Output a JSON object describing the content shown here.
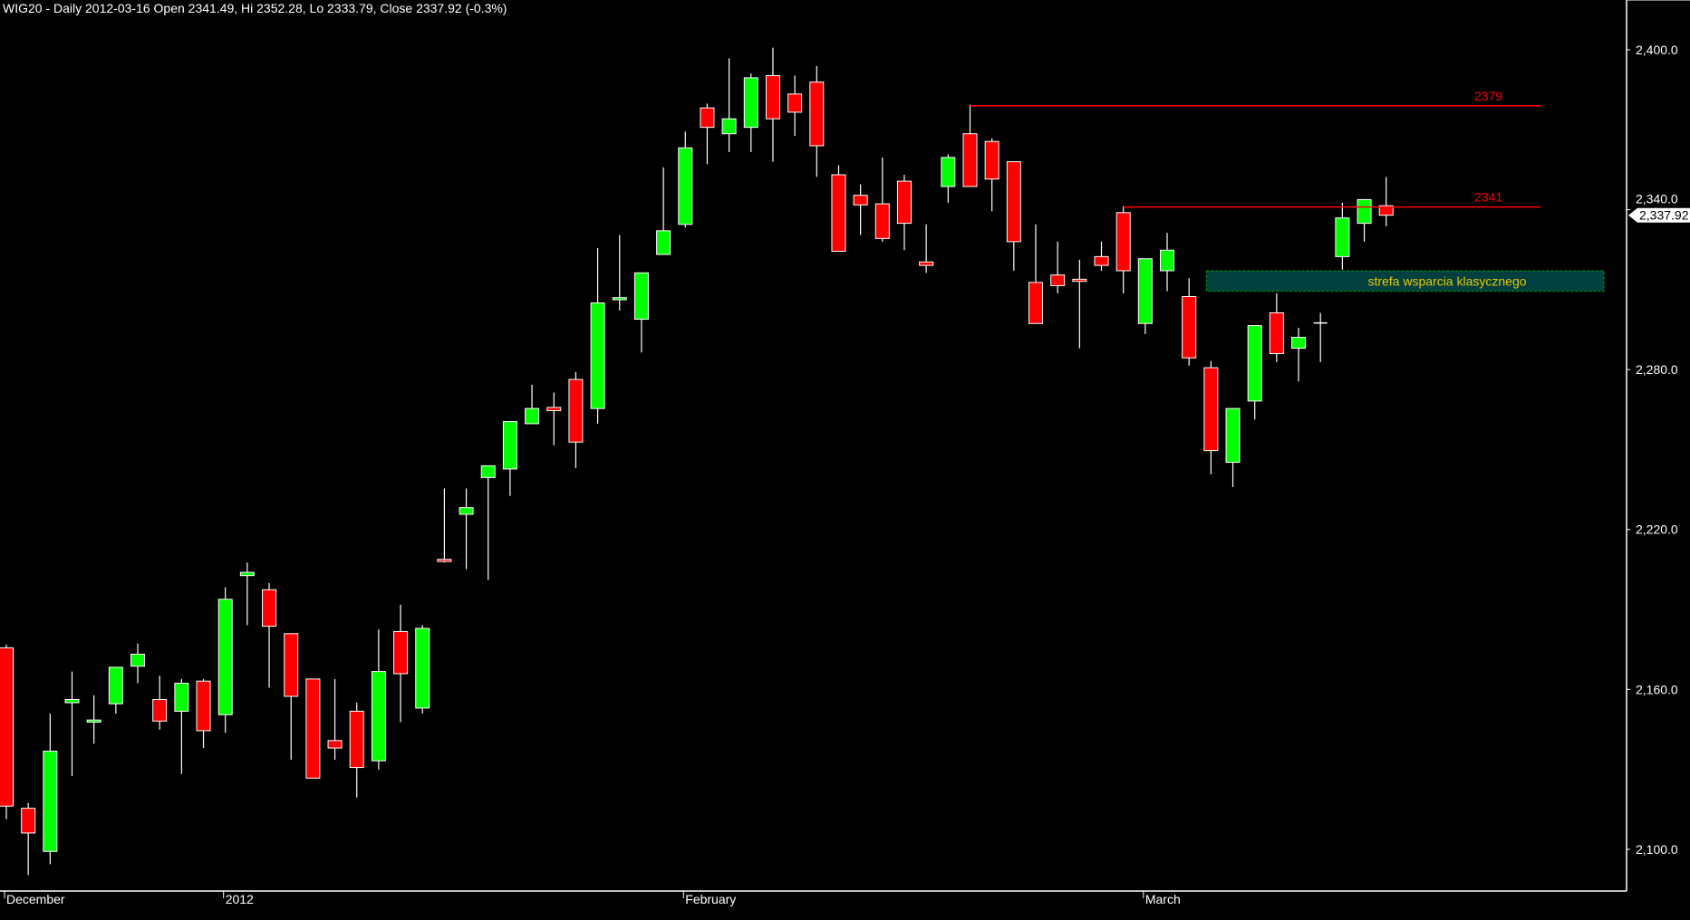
{
  "header": {
    "title": "WIG20 - Daily 2012-03-16 Open 2341.49, Hi 2352.28, Lo 2333.79, Close 2337.92 (-0.3%)"
  },
  "colors": {
    "up": "#00ff00",
    "down": "#ff0000",
    "background": "#000000",
    "level_line": "#ff0000",
    "zone_fill": "#024040",
    "zone_border": "#00a000",
    "zone_text": "#e8c800"
  },
  "chart_data": {
    "type": "candlestick",
    "symbol": "WIG20",
    "ylim": [
      2085,
      2405
    ],
    "yticks": [
      {
        "value": 2400,
        "label": "2,400.0"
      },
      {
        "value": 2340,
        "label": "2,340.0"
      },
      {
        "value": 2280,
        "label": "2,280.0"
      },
      {
        "value": 2220,
        "label": "2,220.0"
      },
      {
        "value": 2160,
        "label": "2,160.0"
      },
      {
        "value": 2100,
        "label": "2,100.0"
      }
    ],
    "xticks": [
      {
        "index": 0,
        "label": "December"
      },
      {
        "index": 10,
        "label": "2012"
      },
      {
        "index": 31,
        "label": "February"
      },
      {
        "index": 52,
        "label": "March"
      }
    ],
    "last_price_label": "2,337.92",
    "last_price": 2337.92,
    "ohlc_columns": [
      "open",
      "high",
      "low",
      "close"
    ],
    "candles": [
      [
        2175.6,
        2176.8,
        2111.3,
        2116.2
      ],
      [
        2115.4,
        2117.4,
        2090.3,
        2106.1
      ],
      [
        2099.2,
        2150.9,
        2094.4,
        2136.8
      ],
      [
        2155.0,
        2166.7,
        2127.5,
        2156.2
      ],
      [
        2147.7,
        2157.8,
        2139.6,
        2148.5
      ],
      [
        2154.6,
        2168.3,
        2150.9,
        2168.3
      ],
      [
        2168.7,
        2177.2,
        2162.3,
        2173.2
      ],
      [
        2156.2,
        2165.1,
        2144.9,
        2148.1
      ],
      [
        2151.8,
        2163.9,
        2128.3,
        2162.3
      ],
      [
        2163.1,
        2163.9,
        2138.0,
        2144.5
      ],
      [
        2150.5,
        2198.3,
        2143.7,
        2193.8
      ],
      [
        2202.7,
        2207.6,
        2184.1,
        2203.9
      ],
      [
        2197.4,
        2199.9,
        2160.7,
        2183.7
      ],
      [
        2180.9,
        2180.9,
        2133.6,
        2157.4
      ],
      [
        2163.9,
        2163.9,
        2126.7,
        2126.7
      ],
      [
        2140.8,
        2163.9,
        2133.6,
        2138.0
      ],
      [
        2151.8,
        2155.0,
        2119.4,
        2130.7
      ],
      [
        2133.2,
        2182.5,
        2129.9,
        2166.7
      ],
      [
        2181.7,
        2191.8,
        2147.7,
        2165.9
      ],
      [
        2153.0,
        2184.1,
        2150.9,
        2182.9
      ],
      [
        2208.8,
        2235.4,
        2207.6,
        2208.0
      ],
      [
        2225.7,
        2235.4,
        2205.1,
        2228.2
      ],
      [
        2239.5,
        2243.9,
        2201.1,
        2243.9
      ],
      [
        2242.7,
        2260.5,
        2232.6,
        2260.5
      ],
      [
        2259.7,
        2274.3,
        2259.7,
        2265.4
      ],
      [
        2265.8,
        2271.4,
        2251.6,
        2264.6
      ],
      [
        2276.3,
        2279.1,
        2243.1,
        2252.8
      ],
      [
        2265.4,
        2325.6,
        2259.7,
        2305.0
      ],
      [
        2306.2,
        2330.5,
        2302.2,
        2307.0
      ],
      [
        2298.9,
        2316.3,
        2286.4,
        2316.3
      ],
      [
        2323.2,
        2355.9,
        2323.2,
        2332.1
      ],
      [
        2334.5,
        2369.3,
        2333.3,
        2363.2
      ],
      [
        2378.2,
        2379.8,
        2357.1,
        2370.9
      ],
      [
        2368.5,
        2396.8,
        2361.6,
        2374.1
      ],
      [
        2370.9,
        2391.1,
        2361.6,
        2389.5
      ],
      [
        2390.3,
        2400.8,
        2358.0,
        2374.1
      ],
      [
        2383.4,
        2390.3,
        2367.7,
        2376.6
      ],
      [
        2387.9,
        2393.9,
        2352.3,
        2364.0
      ],
      [
        2353.1,
        2356.7,
        2324.4,
        2324.4
      ],
      [
        2345.4,
        2349.5,
        2330.5,
        2341.8
      ],
      [
        2342.2,
        2359.6,
        2328.0,
        2329.2
      ],
      [
        2350.7,
        2353.1,
        2324.8,
        2334.9
      ],
      [
        2320.4,
        2334.5,
        2316.3,
        2319.1
      ],
      [
        2348.7,
        2360.8,
        2342.6,
        2359.6
      ],
      [
        2368.5,
        2379.4,
        2348.7,
        2348.7
      ],
      [
        2365.6,
        2366.8,
        2339.4,
        2351.5
      ],
      [
        2358.0,
        2358.0,
        2317.1,
        2328.0
      ],
      [
        2312.7,
        2334.5,
        2297.3,
        2297.3
      ],
      [
        2315.5,
        2328.0,
        2308.6,
        2311.5
      ],
      [
        2313.9,
        2321.2,
        2288.0,
        2313.1
      ],
      [
        2322.4,
        2328.0,
        2317.1,
        2319.1
      ],
      [
        2338.9,
        2341.4,
        2308.6,
        2317.1
      ],
      [
        2297.3,
        2321.6,
        2293.3,
        2321.6
      ],
      [
        2317.1,
        2331.3,
        2309.4,
        2324.8
      ],
      [
        2307.4,
        2314.3,
        2281.5,
        2284.4
      ],
      [
        2280.7,
        2283.2,
        2240.7,
        2249.6
      ],
      [
        2245.2,
        2265.4,
        2235.9,
        2265.4
      ],
      [
        2268.2,
        2296.5,
        2261.3,
        2296.5
      ],
      [
        2301.3,
        2308.6,
        2282.8,
        2286.0
      ],
      [
        2288.0,
        2295.7,
        2275.5,
        2292.1
      ],
      [
        2297.5,
        2301.3,
        2282.8,
        2297.5
      ],
      [
        2322.4,
        2342.6,
        2317.5,
        2336.9
      ],
      [
        2334.9,
        2343.8,
        2328.0,
        2343.8
      ],
      [
        2341.49,
        2352.28,
        2333.79,
        2337.92
      ]
    ],
    "levels": [
      {
        "value": 2379,
        "label": "2379",
        "from_index": 44
      },
      {
        "value": 2341,
        "label": "2341",
        "from_index": 51
      }
    ],
    "zone": {
      "from": 2309.4,
      "to": 2317.1,
      "label": "strefa wsparcia klasycznego",
      "from_index": 55
    }
  }
}
